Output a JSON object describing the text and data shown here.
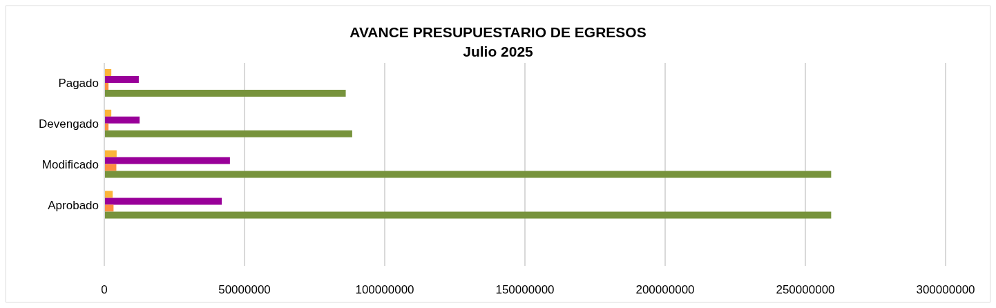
{
  "chart_data": {
    "type": "bar",
    "orientation": "horizontal",
    "title": "AVANCE PRESUPUESTARIO DE EGRESOS",
    "subtitle": "Julio 2025",
    "categories": [
      "Pagado",
      "Devengado",
      "Modificado",
      "Aprobado",
      null
    ],
    "series": [
      {
        "color": "#fbb53a",
        "values": [
          2500000,
          2500000,
          4400000,
          3000000,
          null
        ]
      },
      {
        "color": "#990099",
        "values": [
          12300000,
          12600000,
          44800000,
          41900000,
          null
        ]
      },
      {
        "color": "#fd8e40",
        "values": [
          1500000,
          1500000,
          4300000,
          3300000,
          null
        ]
      },
      {
        "color": "#77933c",
        "values": [
          86100000,
          88400000,
          259200000,
          259200000,
          null
        ]
      }
    ],
    "xlim": [
      0,
      300000000
    ],
    "xticks": [
      0,
      50000000,
      100000000,
      150000000,
      200000000,
      250000000,
      300000000
    ],
    "grid": "x",
    "legend": false
  }
}
